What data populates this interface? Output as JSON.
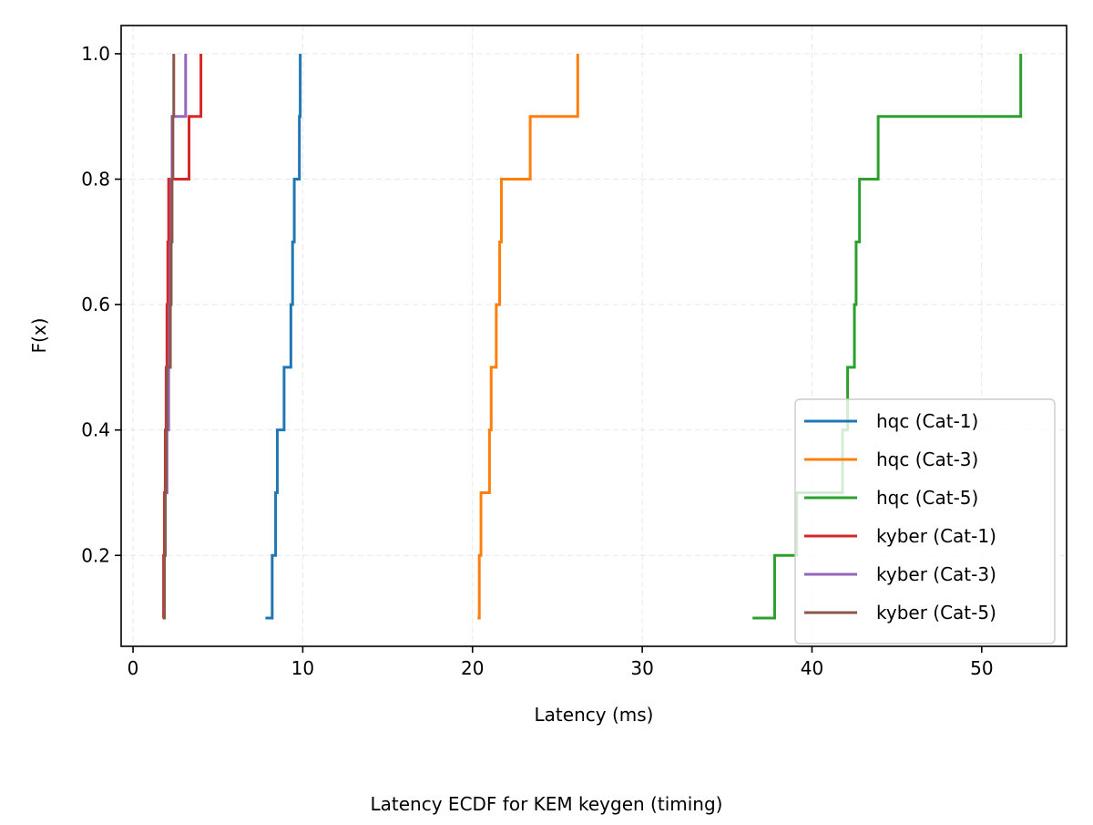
{
  "chart_data": {
    "type": "line",
    "subtype": "ecdf-step",
    "title": "",
    "caption": "Latency ECDF for KEM keygen (timing)",
    "xlabel": "Latency (ms)",
    "ylabel": "F(x)",
    "xlim": [
      -0.7,
      55
    ],
    "ylim": [
      0.055,
      1.045
    ],
    "xticks": [
      0,
      10,
      20,
      30,
      40,
      50
    ],
    "yticks": [
      0.2,
      0.4,
      0.6,
      0.8,
      1.0
    ],
    "xtick_labels": [
      "0",
      "10",
      "20",
      "30",
      "40",
      "50"
    ],
    "ytick_labels": [
      "0.2",
      "0.4",
      "0.6",
      "0.8",
      "1.0"
    ],
    "grid": true,
    "legend_position": "lower-right",
    "series": [
      {
        "name": "hqc (Cat-1)",
        "color": "#1f77b4",
        "x": [
          7.8,
          8.2,
          8.4,
          8.5,
          8.9,
          9.3,
          9.35,
          9.4,
          9.5,
          9.8,
          9.85
        ],
        "y": [
          0.1,
          0.2,
          0.3,
          0.4,
          0.5,
          0.6,
          0.6,
          0.7,
          0.8,
          0.9,
          1.0
        ]
      },
      {
        "name": "hqc (Cat-3)",
        "color": "#ff7f0e",
        "x": [
          20.3,
          20.4,
          20.5,
          21.0,
          21.1,
          21.4,
          21.5,
          21.6,
          21.7,
          23.4,
          26.2
        ],
        "y": [
          0.1,
          0.2,
          0.3,
          0.4,
          0.5,
          0.6,
          0.6,
          0.7,
          0.8,
          0.9,
          1.0
        ]
      },
      {
        "name": "hqc (Cat-5)",
        "color": "#2ca02c",
        "x": [
          36.5,
          37.8,
          39.1,
          41.8,
          42.1,
          42.5,
          42.6,
          42.8,
          43.9,
          52.3
        ],
        "y": [
          0.1,
          0.2,
          0.3,
          0.4,
          0.5,
          0.6,
          0.7,
          0.8,
          0.9,
          1.0
        ]
      },
      {
        "name": "kyber (Cat-1)",
        "color": "#d62728",
        "x": [
          1.75,
          1.8,
          1.85,
          1.9,
          1.95,
          2.0,
          2.05,
          2.1,
          3.3,
          4.0
        ],
        "y": [
          0.1,
          0.2,
          0.3,
          0.4,
          0.5,
          0.6,
          0.7,
          0.8,
          0.9,
          1.0
        ]
      },
      {
        "name": "kyber (Cat-3)",
        "color": "#9467bd",
        "x": [
          1.8,
          1.85,
          1.9,
          2.0,
          2.1,
          2.15,
          2.2,
          2.25,
          2.3,
          3.1
        ],
        "y": [
          0.1,
          0.2,
          0.3,
          0.4,
          0.5,
          0.6,
          0.7,
          0.8,
          0.9,
          1.0
        ]
      },
      {
        "name": "kyber (Cat-5)",
        "color": "#8c564b",
        "x": [
          1.8,
          1.85,
          1.9,
          1.95,
          2.0,
          2.2,
          2.25,
          2.3,
          2.35,
          2.4
        ],
        "y": [
          0.1,
          0.2,
          0.3,
          0.4,
          0.5,
          0.6,
          0.7,
          0.8,
          0.9,
          1.0
        ]
      }
    ]
  }
}
